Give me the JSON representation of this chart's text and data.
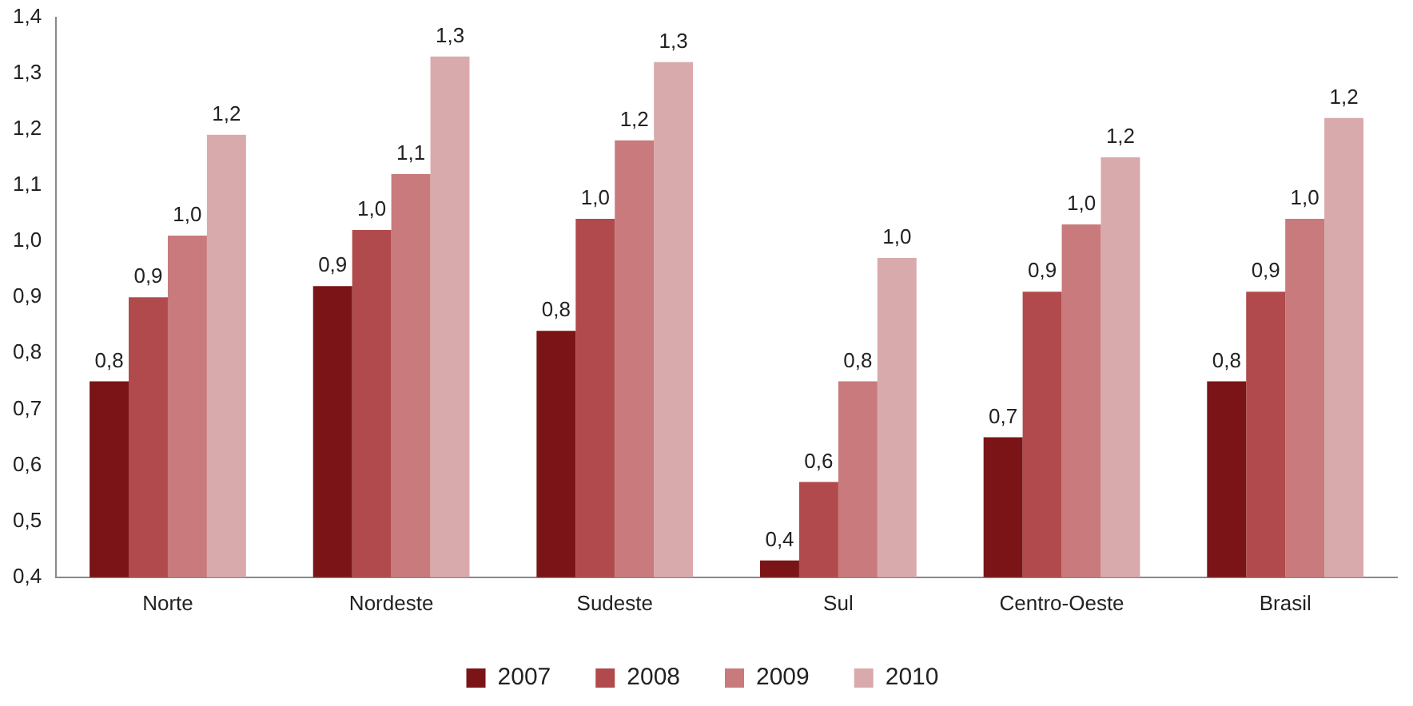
{
  "chart_data": {
    "type": "bar",
    "categories": [
      "Norte",
      "Nordeste",
      "Sudeste",
      "Sul",
      "Centro-Oeste",
      "Brasil"
    ],
    "series": [
      {
        "name": "2007",
        "color": "#7b1416",
        "values": [
          0.75,
          0.92,
          0.84,
          0.43,
          0.65,
          0.75
        ],
        "value_labels": [
          "0,8",
          "0,9",
          "0,8",
          "0,4",
          "0,7",
          "0,8"
        ]
      },
      {
        "name": "2008",
        "color": "#b04a4c",
        "values": [
          0.9,
          1.02,
          1.04,
          0.57,
          0.91,
          0.91
        ],
        "value_labels": [
          "0,9",
          "1,0",
          "1,0",
          "0,6",
          "0,9",
          "0,9"
        ]
      },
      {
        "name": "2009",
        "color": "#c87a7c",
        "values": [
          1.01,
          1.12,
          1.18,
          0.75,
          1.03,
          1.04
        ],
        "value_labels": [
          "1,0",
          "1,1",
          "1,2",
          "0,8",
          "1,0",
          "1,0"
        ]
      },
      {
        "name": "2010",
        "color": "#d9aaab",
        "values": [
          1.19,
          1.33,
          1.32,
          0.97,
          1.15,
          1.22
        ],
        "value_labels": [
          "1,2",
          "1,3",
          "1,3",
          "1,0",
          "1,2",
          "1,2"
        ]
      }
    ],
    "ylim": [
      0.4,
      1.4
    ],
    "yticks": [
      {
        "value": 0.4,
        "label": "0,4"
      },
      {
        "value": 0.5,
        "label": "0,5"
      },
      {
        "value": 0.6,
        "label": "0,6"
      },
      {
        "value": 0.7,
        "label": "0,7"
      },
      {
        "value": 0.8,
        "label": "0,8"
      },
      {
        "value": 0.9,
        "label": "0,9"
      },
      {
        "value": 1.0,
        "label": "1,0"
      },
      {
        "value": 1.1,
        "label": "1,1"
      },
      {
        "value": 1.2,
        "label": "1,2"
      },
      {
        "value": 1.3,
        "label": "1,3"
      },
      {
        "value": 1.4,
        "label": "1,4"
      }
    ],
    "grid": false,
    "legend": "bottom"
  }
}
